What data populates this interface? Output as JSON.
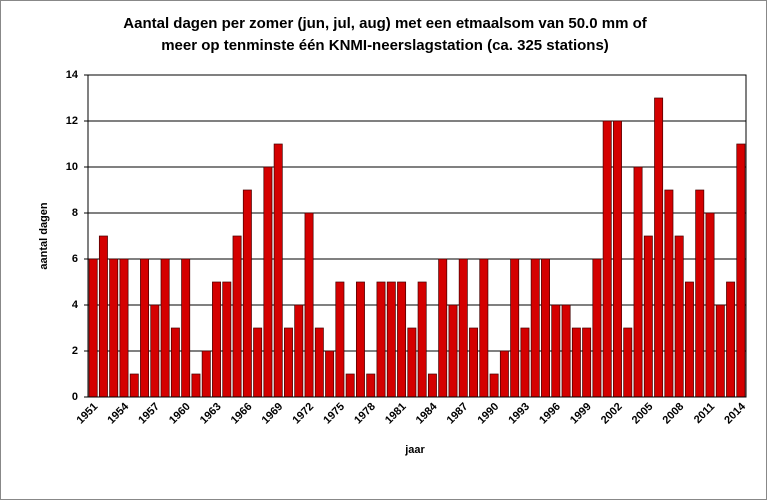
{
  "chart_data": {
    "type": "bar",
    "title": [
      "Aantal  dagen per zomer (jun, jul, aug) met een etmaalsom  van 50.0 mm  of",
      "meer op tenminste  één KNMI-neerslagstation  (ca. 325 stations)"
    ],
    "xlabel": "jaar",
    "ylabel": "aantal dagen",
    "categories": [
      "1951",
      null,
      null,
      "1954",
      null,
      null,
      "1957",
      null,
      null,
      "1960",
      null,
      null,
      "1963",
      null,
      null,
      "1966",
      null,
      null,
      "1969",
      null,
      null,
      "1972",
      null,
      null,
      "1975",
      null,
      null,
      "1978",
      null,
      null,
      "1981",
      null,
      null,
      "1984",
      null,
      null,
      "1987",
      null,
      null,
      "1990",
      null,
      null,
      "1993",
      null,
      null,
      "1996",
      null,
      null,
      "1999",
      null,
      null,
      "2002",
      null,
      null,
      "2005",
      null,
      null,
      "2008",
      null,
      null,
      "2011",
      null,
      null,
      "2014"
    ],
    "values": [
      6,
      7,
      6,
      6,
      1,
      6,
      4,
      6,
      3,
      6,
      1,
      2,
      5,
      5,
      7,
      9,
      3,
      10,
      11,
      3,
      4,
      8,
      3,
      2,
      5,
      1,
      5,
      1,
      5,
      5,
      5,
      3,
      5,
      1,
      6,
      4,
      6,
      3,
      6,
      1,
      2,
      6,
      3,
      6,
      6,
      4,
      4,
      3,
      3,
      6,
      12,
      12,
      3,
      10,
      7,
      13,
      9,
      7,
      5,
      9,
      8,
      4,
      5,
      11
    ],
    "color": "#d40000",
    "ylim": [
      0,
      14
    ],
    "yticks": [
      0,
      2,
      4,
      6,
      8,
      10,
      12,
      14
    ],
    "grid": true
  }
}
